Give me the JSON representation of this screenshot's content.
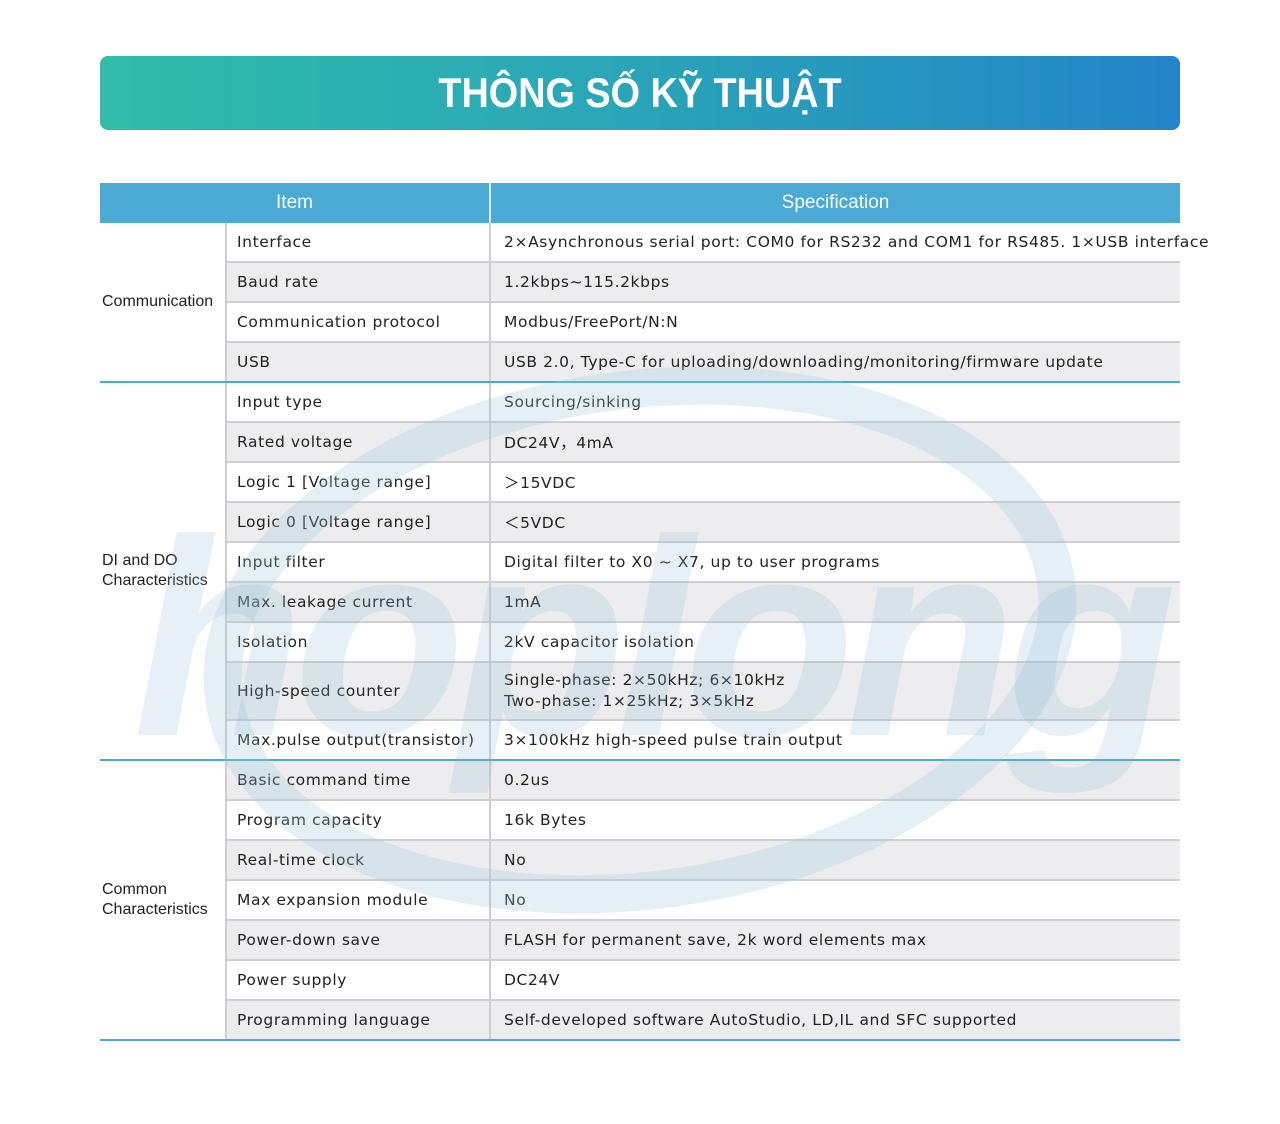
{
  "banner": {
    "title": "THÔNG SỐ KỸ THUẬT",
    "colors": [
      "#31bca9",
      "#2384c8"
    ]
  },
  "watermark": {
    "text": "hoplong"
  },
  "table": {
    "headers": {
      "item": "Item",
      "specification": "Specification"
    },
    "header_color": "#4aaad3",
    "groups": [
      {
        "name": "Communication",
        "rows": [
          {
            "item": "Interface",
            "spec": "2×Asynchronous serial port: COM0 for RS232 and COM1 for RS485. 1×USB interface"
          },
          {
            "item": "Baud rate",
            "spec": "1.2kbps~115.2kbps"
          },
          {
            "item": "Communication protocol",
            "spec": "Modbus/FreePort/N:N"
          },
          {
            "item": "USB",
            "spec": "USB 2.0, Type-C for uploading/downloading/monitoring/firmware update"
          }
        ]
      },
      {
        "name": "DI and DO Characteristics",
        "rows": [
          {
            "item": "Input type",
            "spec": "Sourcing/sinking"
          },
          {
            "item": "Rated voltage",
            "spec": "DC24V，4mA"
          },
          {
            "item": "Logic 1 [Voltage range]",
            "spec": "＞15VDC"
          },
          {
            "item": "Logic 0 [Voltage range]",
            "spec": "＜5VDC"
          },
          {
            "item": "Input filter",
            "spec": "Digital filter to X0 ~ X7, up to user programs"
          },
          {
            "item": "Max. leakage current",
            "spec": "1mA"
          },
          {
            "item": "Isolation",
            "spec": "2kV capacitor isolation"
          },
          {
            "item": "High-speed counter",
            "spec": "Single-phase: 2×50kHz; 6×10kHz",
            "spec2": "Two-phase: 1×25kHz; 3×5kHz"
          },
          {
            "item": "Max.pulse output(transistor)",
            "spec": "3×100kHz high-speed pulse train output"
          }
        ]
      },
      {
        "name": "Common Characteristics",
        "rows": [
          {
            "item": "Basic command time",
            "spec": "0.2us"
          },
          {
            "item": "Program capacity",
            "spec": "16k Bytes"
          },
          {
            "item": "Real-time clock",
            "spec": "No"
          },
          {
            "item": "Max expansion module",
            "spec": "No"
          },
          {
            "item": "Power-down save",
            "spec": "FLASH for permanent save, 2k word elements max"
          },
          {
            "item": "Power supply",
            "spec": "DC24V"
          },
          {
            "item": "Programming language",
            "spec": "Self-developed software AutoStudio, LD,IL and SFC supported"
          }
        ]
      }
    ]
  }
}
